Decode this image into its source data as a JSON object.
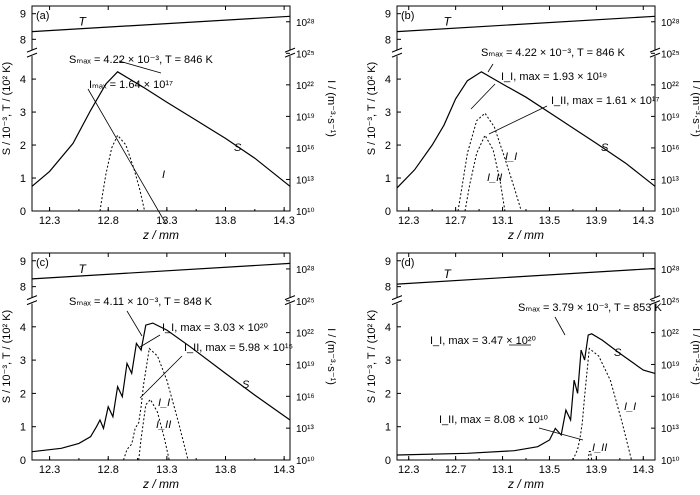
{
  "chart_data": [
    {
      "type": "line",
      "panel_label": "(a)",
      "xlabel": "z / mm",
      "ylabel_left": "S / 10⁻³, T / (10² K)",
      "ylabel_right": "I / (m⁻³·s⁻¹)",
      "x_ticks": [
        "12.3",
        "12.8",
        "13.3",
        "13.8",
        "14.3"
      ],
      "y_left_ticks": [
        "0",
        "1",
        "2",
        "3",
        "4",
        "8",
        "9"
      ],
      "y_right_ticks": [
        "10¹⁰",
        "10¹³",
        "10¹⁶",
        "10¹⁹",
        "10²²",
        "10²⁵",
        "10²⁸"
      ],
      "xlim": [
        12.15,
        14.35
      ],
      "series": [
        {
          "name": "T",
          "style": "solid",
          "axis": "left",
          "x": [
            12.15,
            14.35
          ],
          "y": [
            8.3,
            8.9
          ]
        },
        {
          "name": "S",
          "style": "solid",
          "axis": "left",
          "x": [
            12.15,
            12.3,
            12.5,
            12.65,
            12.78,
            12.88,
            13.1,
            13.3,
            13.55,
            13.8,
            14.05,
            14.35
          ],
          "y": [
            0.75,
            1.2,
            2.05,
            3.05,
            3.85,
            4.22,
            3.75,
            3.3,
            2.75,
            2.2,
            1.6,
            0.75
          ]
        },
        {
          "name": "I",
          "style": "dotted",
          "axis": "right",
          "x": [
            12.73,
            12.75,
            12.78,
            12.83,
            12.88,
            12.95,
            13.02,
            13.07,
            13.11
          ],
          "y": [
            10,
            11.5,
            13.5,
            16.0,
            17.2,
            16.3,
            14.0,
            12.0,
            10
          ]
        }
      ],
      "annotations": [
        {
          "text": "Sₘₐₓ = 4.22 × 10⁻³, T = 846 K"
        },
        {
          "text": "Iₘₐₓ = 1.64 × 10¹⁷"
        },
        {
          "text": "S"
        },
        {
          "text": "I"
        }
      ]
    },
    {
      "type": "line",
      "panel_label": "(b)",
      "xlabel": "z / mm",
      "ylabel_left": "S / 10⁻³, T / (10² K)",
      "ylabel_right": "I / (m⁻³·s⁻¹)",
      "x_ticks": [
        "12.3",
        "12.7",
        "13.1",
        "13.5",
        "13.9",
        "14.3"
      ],
      "y_left_ticks": [
        "0",
        "1",
        "2",
        "3",
        "4",
        "8",
        "9"
      ],
      "y_right_ticks": [
        "10¹⁰",
        "10¹³",
        "10¹⁶",
        "10¹⁹",
        "10²²",
        "10²⁵",
        "10²⁸"
      ],
      "xlim": [
        12.2,
        14.4
      ],
      "series": [
        {
          "name": "T",
          "style": "solid",
          "axis": "left",
          "x": [
            12.2,
            14.4
          ],
          "y": [
            8.3,
            8.9
          ]
        },
        {
          "name": "S",
          "style": "solid",
          "axis": "left",
          "x": [
            12.2,
            12.35,
            12.5,
            12.6,
            12.7,
            12.8,
            12.92,
            13.1,
            13.3,
            13.6,
            13.9,
            14.15,
            14.4
          ],
          "y": [
            0.7,
            1.25,
            2.0,
            2.6,
            3.4,
            3.95,
            4.22,
            3.85,
            3.45,
            2.75,
            2.05,
            1.45,
            0.75
          ]
        },
        {
          "name": "I_I",
          "style": "dotted",
          "axis": "right",
          "x": [
            12.72,
            12.75,
            12.8,
            12.88,
            12.95,
            13.03,
            13.12,
            13.2,
            13.26
          ],
          "y": [
            10,
            12.0,
            15.5,
            18.6,
            19.3,
            18.0,
            15.0,
            12.2,
            10
          ]
        },
        {
          "name": "I_II",
          "style": "dotted",
          "axis": "right",
          "x": [
            12.78,
            12.82,
            12.88,
            12.95,
            13.02,
            13.08,
            13.12
          ],
          "y": [
            10,
            12.5,
            15.5,
            17.2,
            15.8,
            12.8,
            10
          ]
        }
      ],
      "annotations": [
        {
          "text": "Sₘₐₓ = 4.22 × 10⁻³, T = 846 K"
        },
        {
          "text": "I_I, max = 1.93 × 10¹⁹"
        },
        {
          "text": "I_II, max = 1.61 × 10¹⁷"
        },
        {
          "text": "S"
        },
        {
          "text": "I_I"
        },
        {
          "text": "I_II"
        }
      ]
    },
    {
      "type": "line",
      "panel_label": "(c)",
      "xlabel": "z / mm",
      "ylabel_left": "S / 10⁻³, T / (10² K)",
      "ylabel_right": "I / (m⁻³·s⁻¹)",
      "x_ticks": [
        "12.3",
        "12.8",
        "13.3",
        "13.8",
        "14.3"
      ],
      "y_left_ticks": [
        "0",
        "1",
        "2",
        "3",
        "4",
        "8",
        "9"
      ],
      "y_right_ticks": [
        "10¹⁰",
        "10¹³",
        "10¹⁶",
        "10¹⁹",
        "10²²",
        "10²⁵",
        "10²⁸"
      ],
      "xlim": [
        12.15,
        14.35
      ],
      "series": [
        {
          "name": "T",
          "style": "solid",
          "axis": "left",
          "x": [
            12.15,
            14.35
          ],
          "y": [
            8.3,
            8.9
          ]
        },
        {
          "name": "S",
          "style": "solid",
          "axis": "left",
          "x": [
            12.15,
            12.4,
            12.55,
            12.65,
            12.7,
            12.73,
            12.76,
            12.8,
            12.84,
            12.88,
            12.92,
            12.96,
            13.0,
            13.04,
            13.08,
            13.12,
            13.18,
            13.3,
            13.5,
            13.8,
            14.05,
            14.35
          ],
          "y": [
            0.25,
            0.35,
            0.5,
            0.7,
            1.0,
            1.2,
            0.95,
            1.6,
            1.3,
            2.2,
            1.9,
            2.9,
            2.6,
            3.5,
            3.3,
            4.05,
            4.11,
            3.9,
            3.4,
            2.6,
            1.95,
            1.2
          ]
        },
        {
          "name": "I_I",
          "style": "dotted",
          "axis": "right",
          "x": [
            12.93,
            12.96,
            13.0,
            13.03,
            13.06,
            13.08,
            13.1,
            13.15,
            13.22,
            13.3,
            13.4,
            13.48
          ],
          "y": [
            10,
            11,
            11.5,
            13,
            13.5,
            15,
            17,
            20.5,
            19.8,
            17.5,
            13.5,
            10
          ]
        },
        {
          "name": "I_II",
          "style": "dotted",
          "axis": "right",
          "x": [
            13.06,
            13.08,
            13.12,
            13.16,
            13.22,
            13.28,
            13.32
          ],
          "y": [
            10,
            12,
            15.2,
            15.7,
            14.5,
            12,
            10
          ]
        }
      ],
      "annotations": [
        {
          "text": "Sₘₐₓ = 4.11 × 10⁻³, T = 848 K"
        },
        {
          "text": "I_I, max = 3.03 × 10²⁰"
        },
        {
          "text": "I_II, max = 5.98 × 10¹⁵"
        },
        {
          "text": "S"
        },
        {
          "text": "I_I"
        },
        {
          "text": "I_II"
        }
      ]
    },
    {
      "type": "line",
      "panel_label": "(d)",
      "xlabel": "z / mm",
      "ylabel_left": "S / 10⁻³, T / (10² K)",
      "ylabel_right": "I / (m⁻³·s⁻¹)",
      "x_ticks": [
        "12.3",
        "12.7",
        "13.1",
        "13.5",
        "13.9",
        "14.3"
      ],
      "y_left_ticks": [
        "0",
        "1",
        "2",
        "3",
        "4",
        "8",
        "9"
      ],
      "y_right_ticks": [
        "10¹⁰",
        "10¹³",
        "10¹⁶",
        "10¹⁹",
        "10²²",
        "10²⁵",
        "10²⁸"
      ],
      "xlim": [
        12.2,
        14.4
      ],
      "series": [
        {
          "name": "T",
          "style": "solid",
          "axis": "left",
          "x": [
            12.2,
            14.4
          ],
          "y": [
            8.1,
            8.7
          ]
        },
        {
          "name": "S",
          "style": "solid",
          "axis": "left",
          "x": [
            12.2,
            12.8,
            13.2,
            13.4,
            13.5,
            13.55,
            13.6,
            13.64,
            13.68,
            13.71,
            13.74,
            13.77,
            13.8,
            13.83,
            13.86,
            13.95,
            14.1,
            14.3,
            14.4
          ],
          "y": [
            0.15,
            0.2,
            0.28,
            0.4,
            0.6,
            0.95,
            0.75,
            1.5,
            1.2,
            2.4,
            2.0,
            3.3,
            3.0,
            3.75,
            3.79,
            3.6,
            3.2,
            2.7,
            2.6
          ]
        },
        {
          "name": "I_I",
          "style": "dotted",
          "axis": "right",
          "x": [
            13.7,
            13.72,
            13.74,
            13.76,
            13.78,
            13.8,
            13.84,
            13.92,
            14.02,
            14.12,
            14.2
          ],
          "y": [
            10,
            10.5,
            11,
            12,
            13.5,
            16,
            20.5,
            19.8,
            17.5,
            13.5,
            10
          ]
        },
        {
          "name": "I_II",
          "style": "dotted",
          "axis": "right",
          "x": [
            13.83,
            13.84,
            13.85,
            13.86
          ],
          "y": [
            10,
            10.8,
            10.8,
            10
          ]
        }
      ],
      "annotations": [
        {
          "text": "Sₘₐₓ = 3.79 × 10⁻³, T = 853 K"
        },
        {
          "text": "I_I, max = 3.47 × 10²⁰"
        },
        {
          "text": "I_II, max = 8.08 × 10¹⁰"
        },
        {
          "text": "S"
        },
        {
          "text": "I_I"
        },
        {
          "text": "I_II"
        }
      ]
    }
  ]
}
